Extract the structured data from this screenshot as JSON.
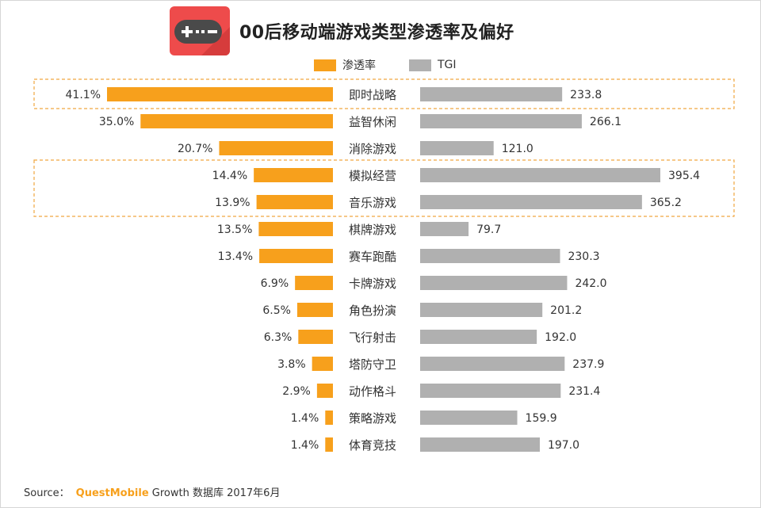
{
  "title": "00后移动端游戏类型渗透率及偏好",
  "icon": "gamepad-icon",
  "colors": {
    "penetration": "#f7a01c",
    "tgi": "#b0b0b0",
    "highlight_border": "#f0a640",
    "logo_bg": "#ee4b4b"
  },
  "legend": {
    "penetration": "渗透率",
    "tgi": "TGI"
  },
  "source": {
    "prefix": "Source：",
    "brand": "QuestMobile",
    "suffix": "Growth 数据库 2017年6月"
  },
  "chart_data": {
    "type": "bar",
    "title": "00后移动端游戏类型渗透率及偏好",
    "orientation": "horizontal-butterfly",
    "categories": [
      "即时战略",
      "益智休闲",
      "消除游戏",
      "模拟经营",
      "音乐游戏",
      "棋牌游戏",
      "赛车跑酷",
      "卡牌游戏",
      "角色扮演",
      "飞行射击",
      "塔防守卫",
      "动作格斗",
      "策略游戏",
      "体育竞技"
    ],
    "series": [
      {
        "name": "渗透率",
        "side": "left",
        "unit": "%",
        "values": [
          41.1,
          35.0,
          20.7,
          14.4,
          13.9,
          13.5,
          13.4,
          6.9,
          6.5,
          6.3,
          3.8,
          2.9,
          1.4,
          1.4
        ],
        "labels": [
          "41.1%",
          "35.0%",
          "20.7%",
          "14.4%",
          "13.9%",
          "13.5%",
          "13.4%",
          "6.9%",
          "6.5%",
          "6.3%",
          "3.8%",
          "2.9%",
          "1.4%",
          "1.4%"
        ]
      },
      {
        "name": "TGI",
        "side": "right",
        "values": [
          233.8,
          266.1,
          121.0,
          395.4,
          365.2,
          79.7,
          230.3,
          242.0,
          201.2,
          192.0,
          237.9,
          231.4,
          159.9,
          197.0
        ],
        "labels": [
          "233.8",
          "266.1",
          "121.0",
          "395.4",
          "365.2",
          "79.7",
          "230.3",
          "242.0",
          "201.2",
          "192.0",
          "237.9",
          "231.4",
          "159.9",
          "197.0"
        ]
      }
    ],
    "highlight_groups": [
      [
        "即时战略"
      ],
      [
        "模拟经营",
        "音乐游戏"
      ]
    ],
    "grid": false,
    "legend_position": "top-center"
  }
}
